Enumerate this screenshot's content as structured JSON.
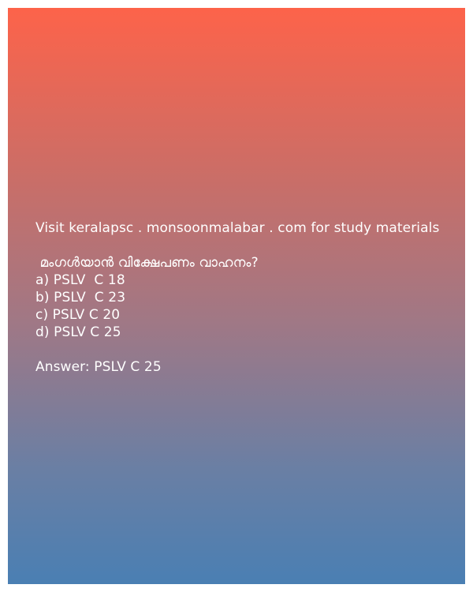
{
  "header": "Visit keralapsc . monsoonmalabar . com for study materials",
  "question": " മംഗൾയാൻ വിക്ഷേപണം വാഹനം?",
  "options": [
    "a) PSLV  C 18",
    "b) PSLV  C 23",
    "c) PSLV C 20",
    "d) PSLV C 25"
  ],
  "answer": "Answer: PSLV C 25",
  "colors": {
    "gradient_top": "#fd634a",
    "gradient_bottom": "#4a7fb3",
    "text": "#ffffff"
  }
}
